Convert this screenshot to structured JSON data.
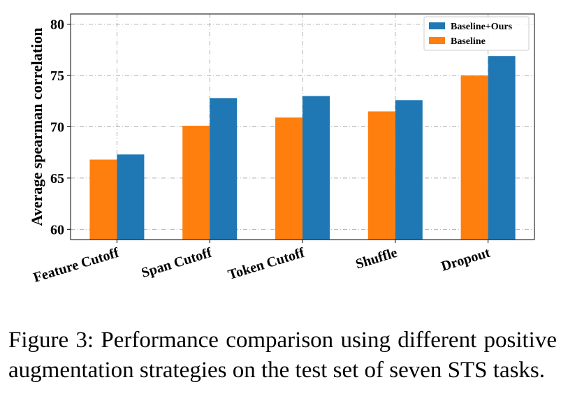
{
  "chart_data": {
    "type": "bar",
    "categories": [
      "Feature Cutoff",
      "Span Cutoff",
      "Token Cutoff",
      "Shuffle",
      "Dropout"
    ],
    "series": [
      {
        "name": "Baseline",
        "values": [
          66.8,
          70.1,
          70.9,
          71.5,
          75.0
        ],
        "color": "#ff7f0e"
      },
      {
        "name": "Baseline+Ours",
        "values": [
          67.3,
          72.8,
          73.0,
          72.6,
          76.9
        ],
        "color": "#1f77b4"
      }
    ],
    "xlabel": "",
    "ylabel": "Average spearman correlation",
    "ylim": [
      59,
      81
    ],
    "yticks": [
      60,
      65,
      70,
      75,
      80
    ],
    "grid": true,
    "legend_position": "top-right",
    "legend_order": [
      "Baseline+Ours",
      "Baseline"
    ]
  },
  "caption": "Figure 3: Performance comparison using different positive augmentation strategies on the test set of seven STS tasks."
}
